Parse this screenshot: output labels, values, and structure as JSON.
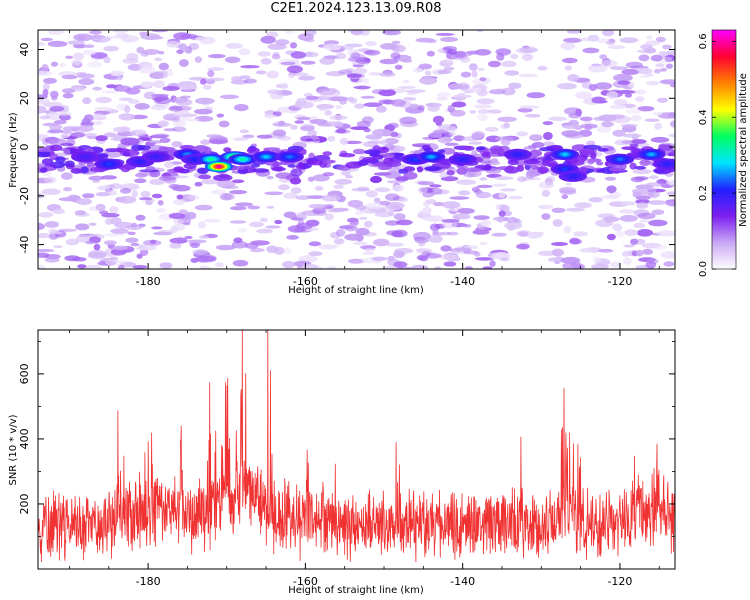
{
  "title": "C2E1.2024.123.13.09.R08",
  "chart_data": [
    {
      "type": "heatmap",
      "xlabel": "Height of straight line (km)",
      "ylabel": "Frequency (Hz)",
      "xlim": [
        -194,
        -113
      ],
      "ylim": [
        -50,
        48
      ],
      "xticks": [
        -180,
        -160,
        -140,
        -120
      ],
      "yticks": [
        -40,
        -20,
        0,
        20,
        40
      ],
      "colorbar": {
        "label": "Normalized spectral amplitude",
        "range": [
          0.0,
          0.63
        ],
        "ticks": [
          0.0,
          0.2,
          0.4,
          0.6
        ],
        "colormap": [
          "#ffffff",
          "#c9a7f5",
          "#7d1ff0",
          "#2020ff",
          "#00e5ff",
          "#00ff60",
          "#ffff00",
          "#ff8000",
          "#ff0030",
          "#ff00ff"
        ]
      },
      "ridge_frequency_hz": -5,
      "hotspots": [
        {
          "x": -188,
          "y": -4,
          "v": 0.18
        },
        {
          "x": -185,
          "y": -7,
          "v": 0.22
        },
        {
          "x": -181,
          "y": -6,
          "v": 0.2
        },
        {
          "x": -179,
          "y": -4,
          "v": 0.19
        },
        {
          "x": -175,
          "y": -3,
          "v": 0.25
        },
        {
          "x": -174,
          "y": -5,
          "v": 0.21
        },
        {
          "x": -172,
          "y": -5,
          "v": 0.33
        },
        {
          "x": -171,
          "y": -8,
          "v": 0.6
        },
        {
          "x": -169,
          "y": -4,
          "v": 0.4
        },
        {
          "x": -168,
          "y": -5,
          "v": 0.32
        },
        {
          "x": -165,
          "y": -4,
          "v": 0.27
        },
        {
          "x": -162,
          "y": -4,
          "v": 0.24
        },
        {
          "x": -146,
          "y": -5,
          "v": 0.22
        },
        {
          "x": -144,
          "y": -4,
          "v": 0.26
        },
        {
          "x": -140,
          "y": -5,
          "v": 0.2
        },
        {
          "x": -133,
          "y": -3,
          "v": 0.2
        },
        {
          "x": -127,
          "y": -3,
          "v": 0.27
        },
        {
          "x": -127,
          "y": -9,
          "v": 0.22
        },
        {
          "x": -126,
          "y": -12,
          "v": 0.2
        },
        {
          "x": -120,
          "y": -5,
          "v": 0.24
        },
        {
          "x": -116,
          "y": -3,
          "v": 0.26
        },
        {
          "x": -114,
          "y": -7,
          "v": 0.2
        }
      ]
    },
    {
      "type": "line",
      "xlabel": "Height of straight line (km)",
      "ylabel": "SNR (10 * v/v)",
      "xlim": [
        -194,
        -113
      ],
      "ylim": [
        0,
        735
      ],
      "xticks": [
        -180,
        -160,
        -140,
        -120
      ],
      "yticks": [
        200,
        400,
        600
      ],
      "color": "#f03232",
      "baseline_snr": 135,
      "noise_amplitude": 110,
      "peaks": [
        {
          "x": -184,
          "y": 420
        },
        {
          "x": -180,
          "y": 430
        },
        {
          "x": -176,
          "y": 450
        },
        {
          "x": -172,
          "y": 560
        },
        {
          "x": -170,
          "y": 620
        },
        {
          "x": -168,
          "y": 710
        },
        {
          "x": -165,
          "y": 735
        },
        {
          "x": -162,
          "y": 460
        },
        {
          "x": -160,
          "y": 420
        },
        {
          "x": -157,
          "y": 360
        },
        {
          "x": -148,
          "y": 390
        },
        {
          "x": -142,
          "y": 405
        },
        {
          "x": -133,
          "y": 370
        },
        {
          "x": -127,
          "y": 530
        },
        {
          "x": -126,
          "y": 520
        },
        {
          "x": -118,
          "y": 400
        },
        {
          "x": -115,
          "y": 390
        }
      ]
    }
  ]
}
